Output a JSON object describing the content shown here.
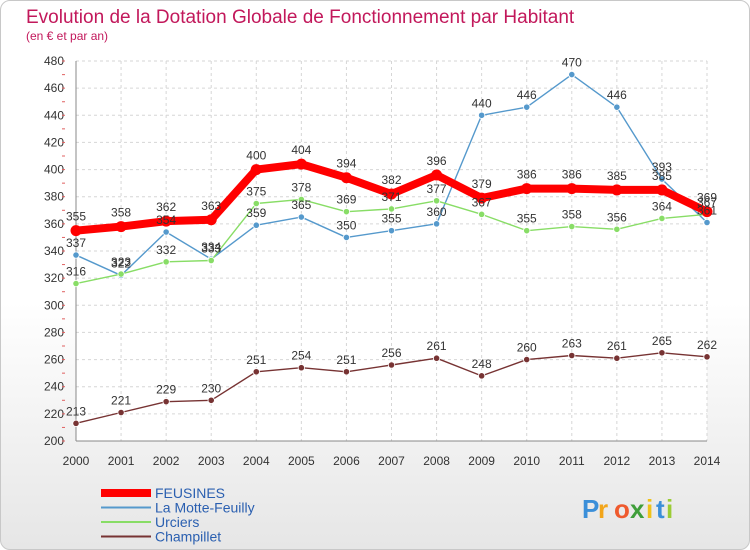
{
  "chart_data": {
    "type": "line",
    "title": "Evolution de la Dotation Globale de Fonctionnement par Habitant",
    "subtitle": "(en € et par an)",
    "x": [
      "2000",
      "2001",
      "2002",
      "2003",
      "2004",
      "2005",
      "2006",
      "2007",
      "2008",
      "2009",
      "2010",
      "2011",
      "2012",
      "2013",
      "2014"
    ],
    "ylim": [
      200,
      480
    ],
    "yticks": [
      200,
      220,
      240,
      260,
      280,
      300,
      320,
      340,
      360,
      380,
      400,
      420,
      440,
      460,
      480
    ],
    "grid": true,
    "legend_position": "bottom-left",
    "series": [
      {
        "name": "FEUSINES",
        "color": "#ff0000",
        "values": [
          355,
          358,
          362,
          363,
          400,
          404,
          394,
          382,
          396,
          379,
          386,
          386,
          385,
          385,
          369
        ]
      },
      {
        "name": "La Motte-Feuilly",
        "color": "#5599cc",
        "values": [
          337,
          322,
          354,
          334,
          359,
          365,
          350,
          355,
          360,
          440,
          446,
          470,
          446,
          393,
          361
        ]
      },
      {
        "name": "Urciers",
        "color": "#88dd66",
        "values": [
          316,
          323,
          332,
          333,
          375,
          378,
          369,
          371,
          377,
          367,
          355,
          358,
          356,
          364,
          367
        ]
      },
      {
        "name": "Champillet",
        "color": "#773333",
        "values": [
          213,
          221,
          229,
          230,
          251,
          254,
          251,
          256,
          261,
          248,
          260,
          263,
          261,
          265,
          262
        ]
      }
    ]
  },
  "brand": {
    "letters": [
      "P",
      "r",
      "o",
      "x",
      "i",
      "t",
      "i"
    ],
    "colors": [
      "#3b8fd9",
      "#f2a51a",
      "#ef5a2e",
      "#3f9e3a",
      "#efc21a",
      "#3b8fd9",
      "#9bcc36"
    ]
  }
}
